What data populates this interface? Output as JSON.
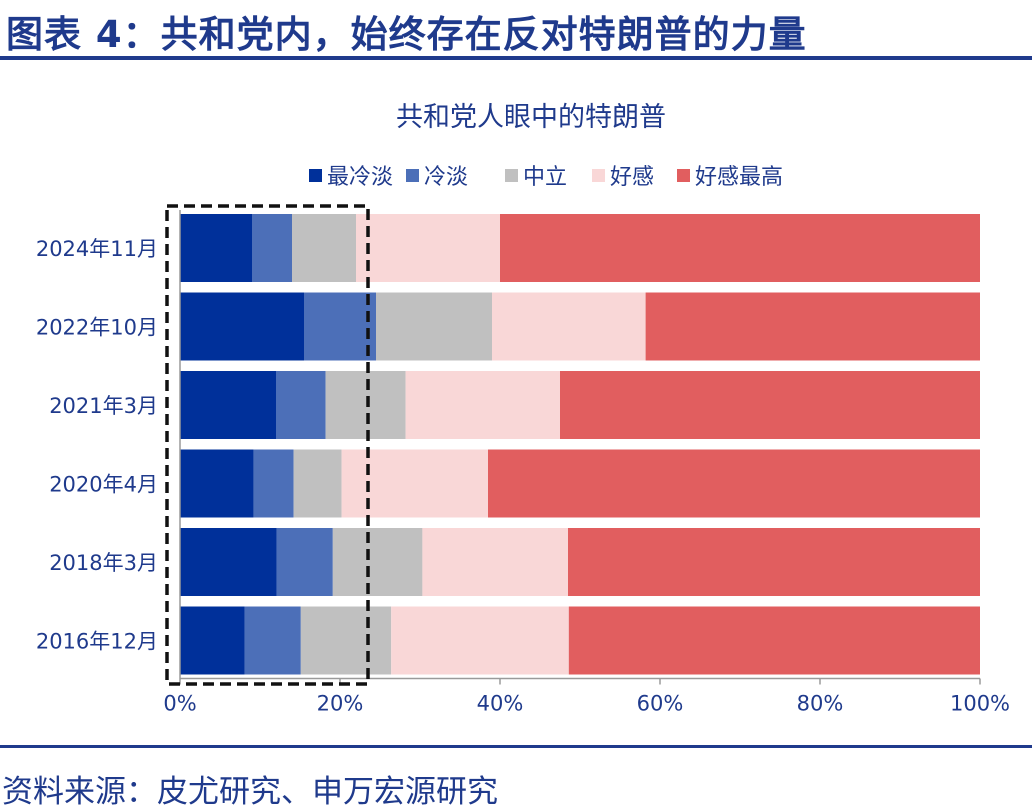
{
  "figure_title": "图表 4：共和党内，始终存在反对特朗普的力量",
  "source_note": "资料来源：皮尤研究、申万宏源研究",
  "chart_data": {
    "type": "bar",
    "orientation": "horizontal",
    "stacked": "percent",
    "title": "共和党人眼中的特朗普",
    "categories": [
      "2024年11月",
      "2022年10月",
      "2021年3月",
      "2020年4月",
      "2018年3月",
      "2016年12月"
    ],
    "series": [
      {
        "name": "最冷淡",
        "color": "#00309a",
        "values": [
          9,
          15.5,
          12,
          9.2,
          12.1,
          8.1
        ]
      },
      {
        "name": "冷淡",
        "color": "#4c6fb8",
        "values": [
          5,
          9,
          6.2,
          5,
          7,
          7
        ]
      },
      {
        "name": "中立",
        "color": "#c0c0c0",
        "values": [
          8,
          14.5,
          10,
          6,
          11.2,
          11.3
        ]
      },
      {
        "name": "好感",
        "color": "#f9d7d7",
        "values": [
          18,
          19.2,
          19.3,
          18.3,
          18.2,
          22.2
        ]
      },
      {
        "name": "好感最高",
        "color": "#e15e5f",
        "values": [
          60,
          41.8,
          52.5,
          61.5,
          51.5,
          51.4
        ]
      }
    ],
    "xlim": [
      0,
      100
    ],
    "x_ticks": [
      "0%",
      "20%",
      "40%",
      "60%",
      "80%",
      "100%"
    ],
    "legend_position": "top",
    "grid": false,
    "annotation": "dashed box around the 最冷淡, 冷淡 and 中立 segments"
  }
}
